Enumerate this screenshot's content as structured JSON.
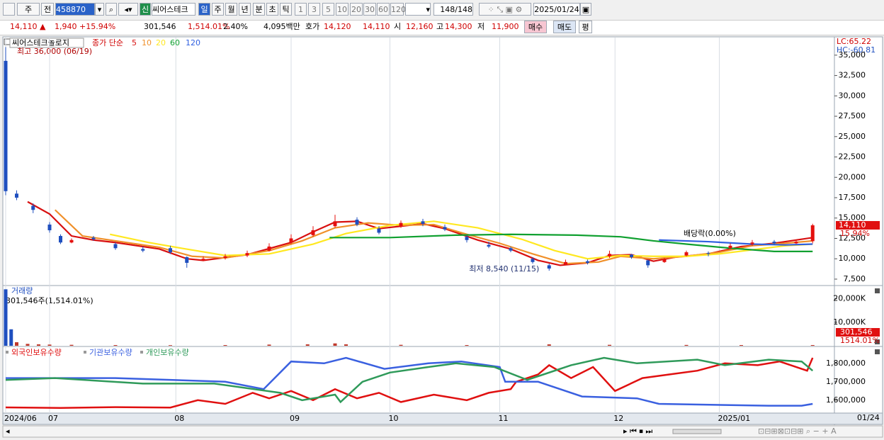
{
  "toolbar": {
    "market": "주",
    "scope": "전",
    "code": "458870",
    "new_badge": "신",
    "name": "씨어스테크",
    "periods": [
      "일",
      "주",
      "월",
      "년",
      "분",
      "초",
      "틱"
    ],
    "intervals": [
      "1",
      "3",
      "5",
      "10",
      "20",
      "30",
      "60",
      "120"
    ],
    "count": "148/148",
    "date": "2025/01/24"
  },
  "quote": {
    "price": "14,110 ▲",
    "change": "1,940 +15.94%",
    "volume": "301,546",
    "volume_ratio": "1,514.01%",
    "turnover": "2.40%",
    "amount": "4,095백만",
    "ask_label": "호가",
    "ask": "14,120",
    "bid": "14,110",
    "open_label": "시",
    "open": "12,160",
    "high_label": "고",
    "high": "14,300",
    "low_label": "저",
    "low": "11,900",
    "buy": "매수",
    "sell": "매도",
    "avg": "평"
  },
  "price_panel": {
    "type": "candlestick",
    "title": "씨어스테크놀로지",
    "ma_label": "종가 단순",
    "up_color": "#e4100e",
    "down_color": "#1f4fbf",
    "candles": {
      "index": [
        0,
        2,
        5,
        8,
        10,
        12,
        16,
        20,
        25,
        30,
        33,
        36,
        40,
        44,
        48,
        52,
        56,
        60,
        64,
        68,
        72,
        76,
        80,
        84,
        88,
        92,
        96,
        99,
        102,
        106,
        110,
        114,
        117,
        120,
        124,
        128,
        132,
        136,
        140,
        144,
        147
      ],
      "open": [
        34300,
        18000,
        16500,
        14200,
        12800,
        12000,
        12600,
        11800,
        11200,
        11300,
        10200,
        9800,
        10100,
        10400,
        11000,
        12000,
        12900,
        14000,
        14800,
        13700,
        14000,
        14600,
        13900,
        12700,
        11700,
        11300,
        10000,
        9200,
        9300,
        9700,
        10300,
        10500,
        9800,
        9600,
        10400,
        10700,
        11300,
        11800,
        12100,
        11900,
        12160
      ],
      "high": [
        36000,
        18400,
        16800,
        14500,
        13000,
        12500,
        12800,
        12000,
        11500,
        11600,
        10300,
        10300,
        10600,
        11000,
        11900,
        13000,
        14000,
        15400,
        15100,
        14000,
        14700,
        14900,
        14200,
        12900,
        12100,
        11500,
        10200,
        9400,
        9900,
        9900,
        11000,
        10600,
        9900,
        10100,
        11000,
        10900,
        11900,
        12300,
        12300,
        12300,
        14300
      ],
      "low": [
        17800,
        17200,
        15600,
        13200,
        11800,
        11900,
        12200,
        11100,
        10800,
        10600,
        8900,
        9700,
        9900,
        10200,
        10900,
        11800,
        12700,
        13800,
        14000,
        13000,
        13800,
        14000,
        13400,
        12000,
        11300,
        10800,
        9400,
        8540,
        9200,
        9300,
        10100,
        10000,
        8900,
        9500,
        10300,
        10300,
        11200,
        11600,
        11700,
        11800,
        11900
      ],
      "close": [
        18300,
        17500,
        16000,
        13500,
        12000,
        12300,
        12400,
        11300,
        11000,
        10800,
        9500,
        10000,
        10300,
        10700,
        11500,
        12500,
        13500,
        14600,
        14200,
        13200,
        14400,
        14300,
        13600,
        12300,
        11500,
        11000,
        9600,
        8800,
        9600,
        9500,
        10600,
        10200,
        9200,
        9900,
        10800,
        10600,
        11600,
        12000,
        11900,
        12100,
        14110
      ]
    },
    "moving_averages": [
      {
        "name": "5",
        "color": "#d81010",
        "index": [
          4,
          8,
          12,
          16,
          20,
          28,
          33,
          36,
          44,
          52,
          56,
          60,
          64,
          68,
          72,
          76,
          80,
          86,
          92,
          97,
          101,
          106,
          110,
          114,
          118,
          122,
          128,
          134,
          140,
          147
        ],
        "values": [
          17000,
          15500,
          12800,
          12300,
          12000,
          11200,
          10000,
          9800,
          10500,
          12000,
          13300,
          14500,
          14600,
          13700,
          14000,
          14300,
          13700,
          12300,
          11200,
          9800,
          9200,
          9500,
          10400,
          10500,
          9700,
          10200,
          10600,
          11500,
          11900,
          12600
        ]
      },
      {
        "name": "10",
        "color": "#f0902a",
        "index": [
          9,
          14,
          20,
          28,
          34,
          40,
          48,
          54,
          60,
          66,
          72,
          78,
          84,
          90,
          96,
          102,
          108,
          112,
          118,
          124,
          130,
          136,
          142,
          147
        ],
        "values": [
          16000,
          12800,
          12200,
          11400,
          10300,
          10100,
          11000,
          12200,
          13800,
          14400,
          14100,
          14200,
          13000,
          11900,
          10600,
          9400,
          9600,
          10300,
          10000,
          10300,
          10800,
          11600,
          11900,
          12200
        ]
      },
      {
        "name": "20",
        "color": "#ffe820",
        "index": [
          19,
          26,
          32,
          40,
          48,
          56,
          62,
          70,
          78,
          86,
          94,
          100,
          106,
          112,
          118,
          124,
          130,
          136,
          142,
          147
        ],
        "values": [
          13000,
          12000,
          11300,
          10400,
          10600,
          11800,
          13100,
          14100,
          14600,
          13800,
          12400,
          11000,
          10000,
          10400,
          10300,
          10300,
          10600,
          11100,
          11600,
          11800
        ]
      },
      {
        "name": "60",
        "color": "#10a030",
        "index": [
          59,
          70,
          82,
          92,
          104,
          112,
          118,
          124,
          132,
          140,
          147
        ],
        "values": [
          12600,
          12600,
          12900,
          13000,
          12900,
          12700,
          12200,
          11800,
          11300,
          10900,
          10900
        ]
      },
      {
        "name": "120",
        "color": "#3060e0",
        "index": [
          119,
          128,
          136,
          142,
          147
        ],
        "values": [
          12300,
          12100,
          11800,
          11700,
          11800
        ]
      }
    ],
    "ylim": [
      6800,
      36900
    ],
    "yticks": [
      {
        "value": 7500,
        "label": "7,500"
      },
      {
        "value": 10000,
        "label": "10,000"
      },
      {
        "value": 12500,
        "label": "12,500"
      },
      {
        "value": 15000,
        "label": "15,000"
      },
      {
        "value": 17500,
        "label": "17,500"
      },
      {
        "value": 20000,
        "label": "20,000"
      },
      {
        "value": 22500,
        "label": "22,500"
      },
      {
        "value": 25000,
        "label": "25,000"
      },
      {
        "value": 27500,
        "label": "27,500"
      },
      {
        "value": 30000,
        "label": "30,000"
      },
      {
        "value": 32500,
        "label": "32,500"
      },
      {
        "value": 35000,
        "label": "35,000"
      }
    ],
    "high_note": "최고 36,000 (06/19)",
    "low_note": "최저 8,540 (11/15)",
    "dividend_note": "배당락(0.00%)",
    "lc": "LC:65.22",
    "hc": "HC:-60.81",
    "last": {
      "value": 14110,
      "label": "14,110"
    },
    "last_change": "15.94%"
  },
  "volume_panel": {
    "type": "bar",
    "title": "거래량",
    "info": "301,546주(1,514.01%)",
    "color": "#c0392b",
    "index": [
      0,
      1,
      2,
      4,
      6,
      8,
      12,
      20,
      30,
      40,
      48,
      55,
      60,
      62,
      72,
      84,
      99,
      110,
      124,
      134,
      147
    ],
    "values": [
      24000,
      7000,
      1500,
      800,
      600,
      500,
      400,
      300,
      250,
      300,
      500,
      600,
      1000,
      600,
      400,
      300,
      600,
      400,
      350,
      300,
      301.546
    ],
    "ylim": [
      0,
      25000
    ],
    "yticks": [
      {
        "value": 10000,
        "label": "10,000K"
      },
      {
        "value": 20000,
        "label": "20,000K"
      }
    ],
    "last": {
      "value": 301.546,
      "label": "301,546"
    },
    "last_ratio": "1514.01%"
  },
  "holdings_panel": {
    "type": "line",
    "series": [
      {
        "name": "외국인보유수량",
        "color": "#e01010",
        "index": [
          0,
          10,
          20,
          30,
          35,
          40,
          45,
          48,
          52,
          56,
          60,
          64,
          68,
          72,
          78,
          84,
          88,
          92,
          93,
          97,
          99,
          103,
          107,
          111,
          116,
          121,
          126,
          131,
          137,
          141,
          146,
          147
        ],
        "values": [
          1561000,
          1558000,
          1562000,
          1560000,
          1600000,
          1580000,
          1640000,
          1610000,
          1650000,
          1600000,
          1660000,
          1610000,
          1640000,
          1590000,
          1630000,
          1600000,
          1640000,
          1660000,
          1700000,
          1740000,
          1790000,
          1720000,
          1780000,
          1650000,
          1720000,
          1740000,
          1760000,
          1800000,
          1790000,
          1810000,
          1760000,
          1830000
        ]
      },
      {
        "name": "기관보유수량",
        "color": "#3a60e0",
        "index": [
          0,
          20,
          40,
          47,
          52,
          58,
          62,
          69,
          77,
          83,
          90,
          91,
          97,
          105,
          115,
          119,
          139,
          145,
          147
        ],
        "values": [
          1720000,
          1720000,
          1700000,
          1660000,
          1810000,
          1800000,
          1830000,
          1770000,
          1800000,
          1810000,
          1780000,
          1700000,
          1700000,
          1620000,
          1610000,
          1580000,
          1570000,
          1570000,
          1580000
        ]
      },
      {
        "name": "개인보유수량",
        "color": "#2f9a5a",
        "index": [
          0,
          9,
          25,
          38,
          50,
          54,
          60,
          61,
          65,
          70,
          77,
          82,
          89,
          95,
          103,
          109,
          115,
          126,
          131,
          139,
          145,
          147
        ],
        "values": [
          1710000,
          1720000,
          1690000,
          1690000,
          1640000,
          1600000,
          1630000,
          1590000,
          1700000,
          1750000,
          1780000,
          1800000,
          1780000,
          1710000,
          1790000,
          1830000,
          1800000,
          1820000,
          1790000,
          1820000,
          1810000,
          1760000
        ]
      }
    ],
    "ylim": [
      1530000,
      1880000
    ],
    "yticks": [
      {
        "value": 1600000,
        "label": "1,600,000"
      },
      {
        "value": 1700000,
        "label": "1,700,000"
      },
      {
        "value": 1800000,
        "label": "1,800,000"
      }
    ]
  },
  "x_axis": {
    "labels": [
      {
        "index": 0,
        "label": "2024/06"
      },
      {
        "index": 8,
        "label": "07"
      },
      {
        "index": 31,
        "label": "08"
      },
      {
        "index": 52,
        "label": "09"
      },
      {
        "index": 70,
        "label": "10"
      },
      {
        "index": 90,
        "label": "11"
      },
      {
        "index": 111,
        "label": "12"
      },
      {
        "index": 130,
        "label": "2025/01"
      }
    ],
    "last_date": "01/24"
  }
}
